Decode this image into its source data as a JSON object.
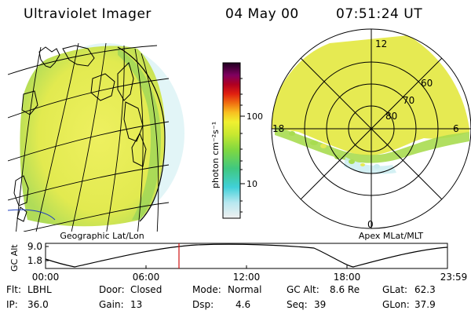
{
  "header": {
    "title": "Ultraviolet Imager",
    "date": "04 May 00",
    "time": "07:51:24 UT"
  },
  "colorbar": {
    "label": "photon cm⁻²s⁻¹",
    "ticks": [
      "100",
      "10"
    ]
  },
  "left_panel": {
    "caption": "Geographic Lat/Lon"
  },
  "right_panel": {
    "caption": "Apex MLat/MLT",
    "mlt_labels": {
      "top": "12",
      "left": "18",
      "right": "6",
      "bottom": "0"
    },
    "lat_labels": [
      "60",
      "70",
      "80"
    ]
  },
  "altitude_plot": {
    "ylabel": "GC Alt",
    "yticks": [
      "9.0",
      "1.8"
    ],
    "xticks": [
      "00:00",
      "06:00",
      "12:00",
      "18:00",
      "23:59"
    ]
  },
  "status": {
    "row1": [
      {
        "key": "Flt:",
        "val": "LBHL"
      },
      {
        "key": "Door:",
        "val": "Closed"
      },
      {
        "key": "Mode:",
        "val": "Normal"
      },
      {
        "key": "GC Alt:",
        "val": "8.6 Re"
      },
      {
        "key": "GLat:",
        "val": "62.3"
      }
    ],
    "row2": [
      {
        "key": "IP:",
        "val": "36.0"
      },
      {
        "key": "Gain:",
        "val": "13"
      },
      {
        "key": "Dsp:",
        "val": "4.6"
      },
      {
        "key": "Seq:",
        "val": "39"
      },
      {
        "key": "GLon:",
        "val": "37.9"
      }
    ]
  },
  "colors": {
    "marker": "#d01010",
    "auroral_yellow": "#e6ec50",
    "auroral_green": "#a8dc50",
    "auroral_cyan": "#60d8d0"
  }
}
